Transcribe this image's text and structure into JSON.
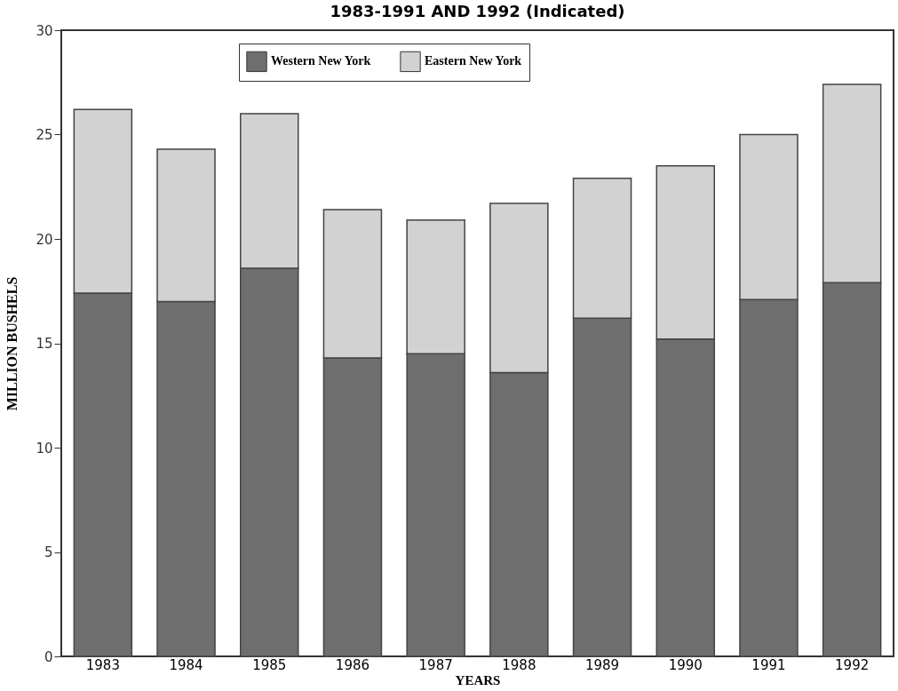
{
  "chart_data": {
    "type": "bar",
    "title": "1983-1991 AND 1992 (Indicated)",
    "xlabel": "YEARS",
    "ylabel": "MILLION BUSHELS",
    "categories": [
      "1983",
      "1984",
      "1985",
      "1986",
      "1987",
      "1988",
      "1989",
      "1990",
      "1991",
      "1992"
    ],
    "stacked": true,
    "series": [
      {
        "name": "Western New York",
        "color": "#6e6e6e",
        "values": [
          17.4,
          17.0,
          18.6,
          14.3,
          14.5,
          13.6,
          16.2,
          15.2,
          17.1,
          17.9
        ]
      },
      {
        "name": "Eastern New York",
        "color": "#d2d2d2",
        "values": [
          8.8,
          7.3,
          7.4,
          7.1,
          6.4,
          8.1,
          6.7,
          8.3,
          7.9,
          9.5
        ]
      }
    ],
    "ylim": [
      0,
      30
    ],
    "yticks": [
      0,
      5,
      10,
      15,
      20,
      25,
      30
    ],
    "grid": false,
    "legend": "top"
  }
}
